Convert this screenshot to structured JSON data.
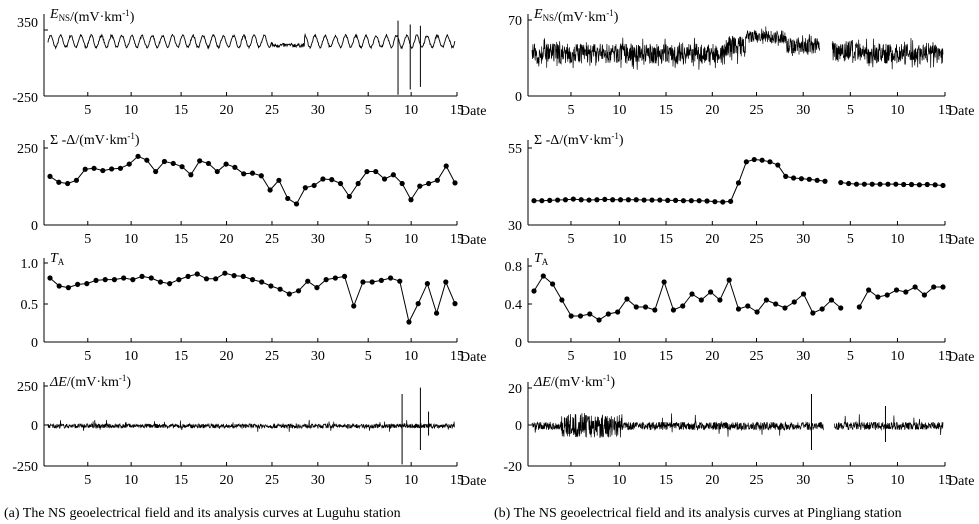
{
  "captions": {
    "left": "(a)  The NS geoelectrical field and its analysis curves at Luguhu station",
    "right": "(b)  The NS geoelectrical field and its analysis curves at Pingliang station"
  },
  "chart_data": [
    {
      "id": "a-ens",
      "type": "line",
      "ylabel_var": "E",
      "ylabel_sub": "NS",
      "ylabel_unit": "/(mV·km",
      "ylabel_sup": "-1",
      "ylabel_close": ")",
      "yticks": [
        "350",
        "-250"
      ],
      "ylim": [
        -250,
        350
      ],
      "xlabel": "Date",
      "xticks": [
        "5",
        "10",
        "15",
        "20",
        "25",
        "30",
        "5",
        "10",
        "15"
      ],
      "series": [
        {
          "style": "oscillation",
          "baseline": 170,
          "amplitude": 45,
          "cycles": 40,
          "noise": 8,
          "dips": [
            {
              "at": 0.56,
              "value": 100
            },
            {
              "at": 0.62,
              "value": 110
            }
          ],
          "spikes": [
            {
              "at": 0.86,
              "min": -240,
              "max": 330
            },
            {
              "at": 0.89,
              "min": -200,
              "max": 300
            },
            {
              "at": 0.915,
              "min": -180,
              "max": 290
            }
          ]
        }
      ]
    },
    {
      "id": "a-sum",
      "type": "line",
      "markers": true,
      "ylabel": "Σ -Δ/(mV·km",
      "ylabel_sup": "-1",
      "ylabel_close": ")",
      "yticks": [
        "250",
        "0"
      ],
      "ylim": [
        0,
        250
      ],
      "xlabel": "Date",
      "xticks": [
        "5",
        "10",
        "15",
        "20",
        "25",
        "30",
        "5",
        "10",
        "15"
      ],
      "series": [
        {
          "values": [
            150,
            132,
            128,
            138,
            172,
            175,
            168,
            173,
            175,
            188,
            212,
            200,
            165,
            196,
            190,
            180,
            155,
            198,
            190,
            165,
            188,
            178,
            158,
            160,
            152,
            108,
            138,
            82,
            65,
            115,
            122,
            142,
            140,
            128,
            88,
            128,
            165,
            165,
            142,
            155,
            128,
            78,
            120,
            128,
            138,
            182,
            130
          ]
        }
      ]
    },
    {
      "id": "a-ta",
      "type": "line",
      "markers": true,
      "ylabel_var": "T",
      "ylabel_sub": "A",
      "yticks": [
        "1.0",
        "0.5",
        "0"
      ],
      "ylim": [
        0,
        1.0
      ],
      "xlabel": "Date",
      "xticks": [
        "5",
        "10",
        "15",
        "20",
        "25",
        "30",
        "5",
        "10",
        "15"
      ],
      "series": [
        {
          "values": [
            0.8,
            0.7,
            0.68,
            0.72,
            0.73,
            0.77,
            0.78,
            0.78,
            0.8,
            0.78,
            0.82,
            0.8,
            0.75,
            0.73,
            0.78,
            0.82,
            0.85,
            0.79,
            0.79,
            0.86,
            0.83,
            0.82,
            0.78,
            0.75,
            0.7,
            0.66,
            0.6,
            0.64,
            0.76,
            0.68,
            0.78,
            0.8,
            0.82,
            0.45,
            0.75,
            0.75,
            0.77,
            0.8,
            0.76,
            0.25,
            0.48,
            0.73,
            0.36,
            0.75,
            0.48
          ]
        }
      ]
    },
    {
      "id": "a-de",
      "type": "line",
      "ylabel_var": "ΔE",
      "ylabel_unit": "/(mV·km",
      "ylabel_sup": "-1",
      "ylabel_close": ")",
      "yticks": [
        "250",
        "0",
        "-250"
      ],
      "ylim": [
        -250,
        250
      ],
      "xlabel": "Date",
      "xticks": [
        "5",
        "10",
        "15",
        "20",
        "25",
        "30",
        "5",
        "10",
        "15"
      ],
      "series": [
        {
          "style": "noise",
          "base": 0,
          "amplitude": 14,
          "spike_every": 0.025,
          "spike_amp": 40,
          "spikes": [
            {
              "at": 0.87,
              "min": -240,
              "max": 200
            },
            {
              "at": 0.915,
              "min": -150,
              "max": 240
            },
            {
              "at": 0.935,
              "min": -60,
              "max": 90
            }
          ]
        }
      ]
    },
    {
      "id": "b-ens",
      "type": "line",
      "ylabel_var": "E",
      "ylabel_sub": "NS",
      "ylabel_unit": "/(mV·km",
      "ylabel_sup": "-1",
      "ylabel_close": ")",
      "yticks": [
        "70",
        "0"
      ],
      "ylim": [
        0,
        70
      ],
      "xlabel": "Date",
      "xticks": [
        "5",
        "10",
        "15",
        "20",
        "25",
        "30",
        "5",
        "10",
        "15"
      ],
      "series": [
        {
          "style": "noise_segments",
          "segments": [
            {
              "from": 0.0,
              "to": 0.5,
              "level": 38,
              "amp": 9
            },
            {
              "from": 0.5,
              "to": 0.78,
              "level": 41,
              "amp": 10
            },
            {
              "from": 0.47,
              "to": 0.52,
              "level": 44,
              "amp": 10
            },
            {
              "from": 0.52,
              "to": 0.62,
              "level": 53,
              "amp": 6
            },
            {
              "from": 0.62,
              "to": 0.7,
              "level": 45,
              "amp": 7
            }
          ],
          "gap": [
            0.7,
            0.73
          ]
        }
      ]
    },
    {
      "id": "b-sum",
      "type": "line",
      "markers": true,
      "ylabel": "Σ -Δ/(mV·km",
      "ylabel_sup": "-1",
      "ylabel_close": ")",
      "yticks": [
        "55",
        "30"
      ],
      "ylim": [
        30,
        55
      ],
      "xlabel": "Date",
      "xticks": [
        "5",
        "10",
        "15",
        "20",
        "25",
        "30",
        "5",
        "10",
        "15"
      ],
      "series": [
        {
          "values": [
            37.5,
            37.5,
            37.6,
            37.7,
            37.8,
            38.0,
            37.8,
            37.7,
            37.8,
            37.9,
            37.8,
            37.8,
            37.8,
            37.8,
            37.7,
            37.7,
            37.7,
            37.6,
            37.6,
            37.5,
            37.5,
            37.5,
            37.4,
            37.2,
            37.1,
            37.3,
            43.0,
            49.5,
            50.2,
            50.0,
            49.5,
            48.5,
            45.0,
            44.5,
            44.3,
            44.1,
            43.8,
            43.5
          ],
          "gap_after": 37,
          "tail": [
            43.1,
            42.8,
            42.6,
            42.6,
            42.6,
            42.6,
            42.6,
            42.6,
            42.5,
            42.5,
            42.4,
            42.5,
            42.4,
            42.2
          ]
        }
      ]
    },
    {
      "id": "b-ta",
      "type": "line",
      "markers": true,
      "ylabel_var": "T",
      "ylabel_sub": "A",
      "yticks": [
        "0.8",
        "0.4",
        "0"
      ],
      "ylim": [
        0,
        0.8
      ],
      "xlabel": "Date",
      "xticks": [
        "5",
        "10",
        "15",
        "20",
        "25",
        "30",
        "5",
        "10",
        "15"
      ],
      "series": [
        {
          "values": [
            0.51,
            0.66,
            0.58,
            0.42,
            0.26,
            0.26,
            0.28,
            0.22,
            0.28,
            0.3,
            0.43,
            0.35,
            0.35,
            0.32,
            0.6,
            0.32,
            0.36,
            0.48,
            0.42,
            0.5,
            0.42,
            0.62,
            0.33,
            0.36,
            0.3,
            0.42,
            0.38,
            0.34,
            0.4,
            0.48,
            0.29,
            0.33,
            0.42,
            0.34
          ],
          "gap_after": 33,
          "tail": [
            0.35,
            0.52,
            0.45,
            0.47,
            0.52,
            0.5,
            0.55,
            0.47,
            0.55,
            0.55
          ]
        }
      ]
    },
    {
      "id": "b-de",
      "type": "line",
      "ylabel_var": "ΔE",
      "ylabel_unit": "/(mV·km",
      "ylabel_sup": "-1",
      "ylabel_close": ")",
      "yticks": [
        "20",
        "0",
        "-20"
      ],
      "ylim": [
        -20,
        20
      ],
      "xlabel": "Date",
      "xticks": [
        "5",
        "10",
        "15",
        "20",
        "25",
        "30",
        "5",
        "10",
        "15"
      ],
      "series": [
        {
          "style": "noise",
          "base": 0,
          "amplitude": 2,
          "spike_every": 0.02,
          "spike_amp": 7,
          "burst": [
            0.07,
            0.22,
            6
          ],
          "spikes": [
            {
              "at": 0.68,
              "min": -12,
              "max": 16
            },
            {
              "at": 0.86,
              "min": -8,
              "max": 10
            }
          ],
          "gap": [
            0.71,
            0.735
          ]
        }
      ]
    }
  ]
}
